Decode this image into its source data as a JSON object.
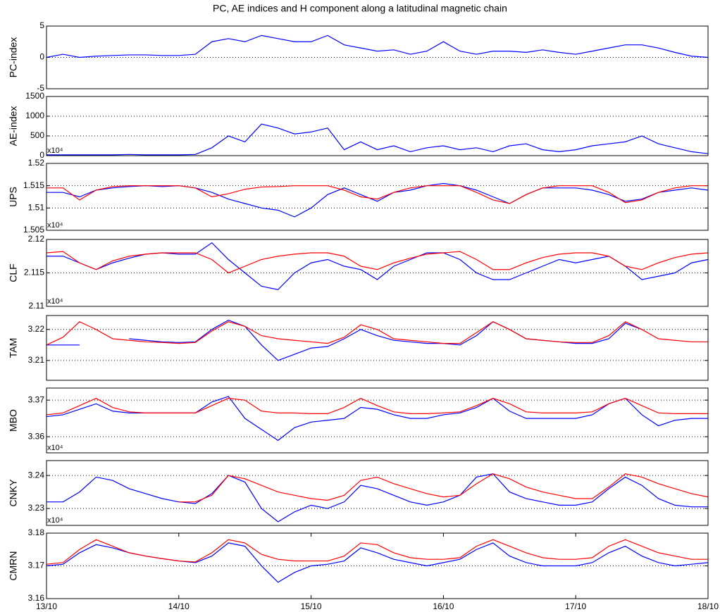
{
  "chart_data": [
    {
      "type": "line",
      "title": "PC, AE indices and H component along a latitudinal magnetic chain",
      "ylabel": "PC-index",
      "grid": true,
      "x": [
        13,
        13.125,
        13.25,
        13.375,
        13.5,
        13.625,
        13.75,
        13.875,
        14,
        14.125,
        14.25,
        14.375,
        14.5,
        14.625,
        14.75,
        14.875,
        15,
        15.125,
        15.25,
        15.375,
        15.5,
        15.625,
        15.75,
        15.875,
        16,
        16.125,
        16.25,
        16.375,
        16.5,
        16.625,
        16.75,
        16.875,
        17,
        17.125,
        17.25,
        17.375,
        17.5,
        17.625,
        17.75,
        17.875,
        18
      ],
      "xlim": [
        13,
        18
      ],
      "ylim": [
        -5,
        5
      ],
      "yticks": [
        -5,
        0,
        5
      ],
      "series": [
        {
          "color": "#0000ff",
          "values": [
            0,
            0.5,
            0,
            0.2,
            0.3,
            0.4,
            0.4,
            0.3,
            0.3,
            0.5,
            2.5,
            3,
            2.5,
            3.5,
            3,
            2.5,
            2.5,
            3.5,
            2,
            1.5,
            1,
            1.2,
            0.5,
            1,
            2.5,
            1,
            0.5,
            1,
            1,
            0.8,
            1.2,
            0.8,
            0.5,
            1,
            1.5,
            2,
            2,
            1.5,
            0.8,
            0.2,
            0
          ]
        }
      ]
    },
    {
      "type": "line",
      "ylabel": "AE-index",
      "grid": true,
      "y_multiplier": "x10⁴",
      "x": [
        13,
        13.125,
        13.25,
        13.375,
        13.5,
        13.625,
        13.75,
        13.875,
        14,
        14.125,
        14.25,
        14.375,
        14.5,
        14.625,
        14.75,
        14.875,
        15,
        15.125,
        15.25,
        15.375,
        15.5,
        15.625,
        15.75,
        15.875,
        16,
        16.125,
        16.25,
        16.375,
        16.5,
        16.625,
        16.75,
        16.875,
        17,
        17.125,
        17.25,
        17.375,
        17.5,
        17.625,
        17.75,
        17.875,
        18
      ],
      "xlim": [
        13,
        18
      ],
      "ylim": [
        0,
        1500
      ],
      "yticks": [
        0,
        500,
        1000,
        1500
      ],
      "series": [
        {
          "color": "#0000ff",
          "values": [
            20,
            20,
            20,
            20,
            20,
            30,
            20,
            20,
            20,
            30,
            200,
            500,
            350,
            800,
            700,
            550,
            600,
            700,
            150,
            350,
            150,
            250,
            100,
            200,
            250,
            150,
            200,
            100,
            250,
            300,
            150,
            100,
            150,
            250,
            300,
            350,
            500,
            300,
            200,
            100,
            50
          ]
        }
      ]
    },
    {
      "type": "line",
      "ylabel": "UPS",
      "grid": true,
      "y_multiplier": "x10⁴",
      "x": [
        13,
        13.125,
        13.25,
        13.375,
        13.5,
        13.625,
        13.75,
        13.875,
        14,
        14.125,
        14.25,
        14.375,
        14.5,
        14.625,
        14.75,
        14.875,
        15,
        15.125,
        15.25,
        15.375,
        15.5,
        15.625,
        15.75,
        15.875,
        16,
        16.125,
        16.25,
        16.375,
        16.5,
        16.625,
        16.75,
        16.875,
        17,
        17.125,
        17.25,
        17.375,
        17.5,
        17.625,
        17.75,
        17.875,
        18
      ],
      "xlim": [
        13,
        18
      ],
      "ylim": [
        1.505,
        1.52
      ],
      "yticks": [
        1.505,
        1.51,
        1.515,
        1.52
      ],
      "series": [
        {
          "color": "#0000ff",
          "values": [
            1.5135,
            1.5135,
            1.5125,
            1.514,
            1.5145,
            1.5148,
            1.515,
            1.5148,
            1.515,
            1.5145,
            1.5135,
            1.512,
            1.511,
            1.51,
            1.5095,
            1.508,
            1.51,
            1.513,
            1.5145,
            1.513,
            1.5115,
            1.5135,
            1.514,
            1.515,
            1.5155,
            1.515,
            1.514,
            1.5125,
            1.511,
            1.513,
            1.5145,
            1.5145,
            1.5145,
            1.514,
            1.513,
            1.5115,
            1.512,
            1.5135,
            1.514,
            1.5145,
            1.514
          ]
        },
        {
          "color": "#ff0000",
          "values": [
            1.5145,
            1.5145,
            1.5118,
            1.514,
            1.5148,
            1.515,
            1.515,
            1.515,
            1.515,
            1.5145,
            1.5125,
            1.5132,
            1.5142,
            1.5147,
            1.5148,
            1.515,
            1.515,
            1.515,
            1.514,
            1.5125,
            1.512,
            1.5135,
            1.5145,
            1.515,
            1.515,
            1.515,
            1.5135,
            1.5118,
            1.511,
            1.513,
            1.5145,
            1.515,
            1.515,
            1.515,
            1.5135,
            1.5112,
            1.5118,
            1.5135,
            1.5145,
            1.515,
            1.515
          ]
        }
      ]
    },
    {
      "type": "line",
      "ylabel": "CLF",
      "grid": true,
      "y_multiplier": "x10⁴",
      "x": [
        13,
        13.125,
        13.25,
        13.375,
        13.5,
        13.625,
        13.75,
        13.875,
        14,
        14.125,
        14.25,
        14.375,
        14.5,
        14.625,
        14.75,
        14.875,
        15,
        15.125,
        15.25,
        15.375,
        15.5,
        15.625,
        15.75,
        15.875,
        16,
        16.125,
        16.25,
        16.375,
        16.5,
        16.625,
        16.75,
        16.875,
        17,
        17.125,
        17.25,
        17.375,
        17.5,
        17.625,
        17.75,
        17.875,
        18
      ],
      "xlim": [
        13,
        18
      ],
      "ylim": [
        2.11,
        2.12
      ],
      "yticks": [
        2.11,
        2.115,
        2.12
      ],
      "series": [
        {
          "color": "#0000ff",
          "values": [
            2.1175,
            2.1175,
            2.1165,
            2.1155,
            2.1165,
            2.1172,
            2.1178,
            2.118,
            2.1178,
            2.1178,
            2.1195,
            2.117,
            2.115,
            2.113,
            2.1125,
            2.115,
            2.1165,
            2.117,
            2.116,
            2.1155,
            2.114,
            2.116,
            2.117,
            2.118,
            2.118,
            2.117,
            2.115,
            2.114,
            2.114,
            2.115,
            2.116,
            2.117,
            2.1165,
            2.117,
            2.1175,
            2.116,
            2.114,
            2.1145,
            2.115,
            2.1165,
            2.117
          ]
        },
        {
          "color": "#ff0000",
          "values": [
            2.118,
            2.1182,
            2.1165,
            2.1155,
            2.1168,
            2.1175,
            2.1178,
            2.118,
            2.118,
            2.118,
            2.117,
            2.115,
            2.116,
            2.117,
            2.1175,
            2.1178,
            2.118,
            2.118,
            2.1175,
            2.116,
            2.1155,
            2.1165,
            2.1172,
            2.1178,
            2.118,
            2.1182,
            2.117,
            2.1155,
            2.1155,
            2.1165,
            2.1173,
            2.1178,
            2.118,
            2.118,
            2.1175,
            2.116,
            2.1155,
            2.1165,
            2.1173,
            2.1178,
            2.118
          ]
        }
      ]
    },
    {
      "type": "line",
      "ylabel": "TAM",
      "grid": true,
      "x": [
        13,
        13.125,
        13.25,
        13.375,
        13.5,
        13.625,
        13.75,
        13.875,
        14,
        14.125,
        14.25,
        14.375,
        14.5,
        14.625,
        14.75,
        14.875,
        15,
        15.125,
        15.25,
        15.375,
        15.5,
        15.625,
        15.75,
        15.875,
        16,
        16.125,
        16.25,
        16.375,
        16.5,
        16.625,
        16.75,
        16.875,
        17,
        17.125,
        17.25,
        17.375,
        17.5,
        17.625,
        17.75,
        17.875,
        18
      ],
      "xlim": [
        13,
        18
      ],
      "ylim": [
        3.2036,
        3.2245
      ],
      "yticks": [
        3.21,
        3.22
      ],
      "series": [
        {
          "color": "#0000ff",
          "values": [
            3.215,
            3.215,
            3.215,
            null,
            null,
            3.217,
            3.2165,
            3.216,
            3.2158,
            3.216,
            3.22,
            3.223,
            3.221,
            3.215,
            3.21,
            3.212,
            3.214,
            3.2145,
            3.217,
            3.22,
            3.218,
            3.2165,
            3.216,
            3.2155,
            3.2155,
            3.215,
            3.218,
            3.2225,
            3.22,
            3.217,
            3.2165,
            3.216,
            3.2155,
            3.2155,
            3.217,
            3.222,
            3.22,
            null,
            null,
            null,
            null
          ]
        },
        {
          "color": "#ff0000",
          "values": [
            3.215,
            3.2175,
            3.2225,
            3.22,
            3.217,
            3.2165,
            3.216,
            3.2158,
            3.2155,
            3.2158,
            3.2195,
            3.2225,
            3.221,
            3.218,
            3.217,
            3.2165,
            3.216,
            3.2155,
            3.2175,
            3.2215,
            3.22,
            3.217,
            3.2165,
            3.216,
            3.2155,
            3.2155,
            3.219,
            3.2225,
            3.22,
            3.217,
            3.2165,
            3.216,
            3.2158,
            3.2158,
            3.218,
            3.2225,
            3.22,
            3.217,
            3.2165,
            3.216,
            3.216
          ]
        }
      ]
    },
    {
      "type": "line",
      "ylabel": "MBO",
      "grid": true,
      "y_multiplier": "x10⁴",
      "x": [
        13,
        13.125,
        13.25,
        13.375,
        13.5,
        13.625,
        13.75,
        13.875,
        14,
        14.125,
        14.25,
        14.375,
        14.5,
        14.625,
        14.75,
        14.875,
        15,
        15.125,
        15.25,
        15.375,
        15.5,
        15.625,
        15.75,
        15.875,
        16,
        16.125,
        16.25,
        16.375,
        16.5,
        16.625,
        16.75,
        16.875,
        17,
        17.125,
        17.25,
        17.375,
        17.5,
        17.625,
        17.75,
        17.875,
        18
      ],
      "xlim": [
        13,
        18
      ],
      "ylim": [
        3.3556,
        3.3733
      ],
      "yticks": [
        3.36,
        3.37
      ],
      "series": [
        {
          "color": "#0000ff",
          "values": [
            3.3655,
            3.366,
            3.3675,
            3.369,
            3.367,
            3.3665,
            3.3665,
            3.3665,
            3.3665,
            3.3665,
            3.3695,
            3.371,
            3.365,
            3.362,
            3.359,
            3.3625,
            3.364,
            3.3645,
            3.365,
            3.368,
            3.3675,
            3.366,
            3.365,
            3.365,
            3.366,
            3.3665,
            3.368,
            3.3705,
            3.367,
            3.365,
            3.365,
            3.365,
            3.365,
            3.366,
            3.369,
            3.3705,
            3.366,
            3.363,
            3.3645,
            3.365,
            3.365
          ]
        },
        {
          "color": "#ff0000",
          "values": [
            3.366,
            3.3665,
            3.3685,
            3.3705,
            3.368,
            3.3668,
            3.3665,
            3.3665,
            3.3665,
            3.3665,
            3.3685,
            3.3705,
            3.37,
            3.367,
            3.3665,
            3.3665,
            3.3663,
            3.3663,
            3.368,
            3.3705,
            3.3685,
            3.3668,
            3.3663,
            3.3663,
            3.3665,
            3.3668,
            3.3685,
            3.3705,
            3.369,
            3.3668,
            3.3665,
            3.3665,
            3.3665,
            3.3668,
            3.369,
            3.3705,
            3.3685,
            3.3665,
            3.3663,
            3.3663,
            3.3663
          ]
        }
      ]
    },
    {
      "type": "line",
      "ylabel": "CNKY",
      "grid": true,
      "y_multiplier": "x10⁴",
      "x": [
        13,
        13.125,
        13.25,
        13.375,
        13.5,
        13.625,
        13.75,
        13.875,
        14,
        14.125,
        14.25,
        14.375,
        14.5,
        14.625,
        14.75,
        14.875,
        15,
        15.125,
        15.25,
        15.375,
        15.5,
        15.625,
        15.75,
        15.875,
        16,
        16.125,
        16.25,
        16.375,
        16.5,
        16.625,
        16.75,
        16.875,
        17,
        17.125,
        17.25,
        17.375,
        17.5,
        17.625,
        17.75,
        17.875,
        18
      ],
      "xlim": [
        13,
        18
      ],
      "ylim": [
        3.2249,
        3.2445
      ],
      "yticks": [
        3.23,
        3.24
      ],
      "series": [
        {
          "color": "#0000ff",
          "values": [
            3.232,
            3.232,
            3.235,
            3.2395,
            3.2385,
            3.236,
            3.2345,
            3.233,
            3.232,
            3.2315,
            3.2345,
            3.24,
            3.238,
            3.23,
            3.226,
            3.229,
            3.231,
            3.23,
            3.232,
            3.237,
            3.236,
            3.234,
            3.232,
            3.231,
            3.232,
            3.234,
            3.2395,
            3.2405,
            3.235,
            3.233,
            3.232,
            3.231,
            3.231,
            3.232,
            3.236,
            3.2395,
            3.237,
            3.233,
            3.231,
            3.2305,
            3.2305
          ]
        },
        {
          "color": "#ff0000",
          "values": [
            null,
            null,
            null,
            null,
            null,
            null,
            null,
            null,
            3.232,
            3.232,
            3.234,
            3.24,
            3.239,
            3.237,
            3.235,
            3.234,
            3.233,
            3.2325,
            3.234,
            3.2385,
            3.2395,
            3.2375,
            3.236,
            3.2345,
            3.2335,
            3.234,
            3.2375,
            3.2405,
            3.239,
            3.2365,
            3.235,
            3.234,
            3.233,
            3.233,
            3.2365,
            3.2405,
            3.2395,
            3.2375,
            3.236,
            3.2345,
            3.2335
          ]
        }
      ]
    },
    {
      "type": "line",
      "ylabel": "CMRN",
      "grid": true,
      "x": [
        13,
        13.125,
        13.25,
        13.375,
        13.5,
        13.625,
        13.75,
        13.875,
        14,
        14.125,
        14.25,
        14.375,
        14.5,
        14.625,
        14.75,
        14.875,
        15,
        15.125,
        15.25,
        15.375,
        15.5,
        15.625,
        15.75,
        15.875,
        16,
        16.125,
        16.25,
        16.375,
        16.5,
        16.625,
        16.75,
        16.875,
        17,
        17.125,
        17.25,
        17.375,
        17.5,
        17.625,
        17.75,
        17.875,
        18
      ],
      "xlim": [
        13,
        18
      ],
      "ylim": [
        3.16,
        3.18
      ],
      "yticks": [
        3.16,
        3.17,
        3.18
      ],
      "xticks": [
        {
          "value": 13,
          "label": "13/10"
        },
        {
          "value": 14,
          "label": "14/10"
        },
        {
          "value": 15,
          "label": "15/10"
        },
        {
          "value": 16,
          "label": "16/10"
        },
        {
          "value": 17,
          "label": "17/10"
        },
        {
          "value": 18,
          "label": "18/10"
        }
      ],
      "series": [
        {
          "color": "#0000ff",
          "values": [
            3.17,
            3.1705,
            3.174,
            3.1765,
            3.1755,
            3.174,
            3.173,
            3.1722,
            3.1715,
            3.171,
            3.173,
            3.177,
            3.176,
            3.17,
            3.165,
            3.168,
            3.17,
            3.1705,
            3.1715,
            3.1755,
            3.174,
            3.172,
            3.171,
            3.17,
            3.171,
            3.172,
            3.175,
            3.177,
            3.173,
            3.171,
            3.17,
            3.17,
            3.17,
            3.171,
            3.174,
            3.176,
            3.173,
            3.171,
            3.17,
            3.1705,
            3.171
          ]
        },
        {
          "color": "#ff0000",
          "values": [
            3.1705,
            3.171,
            3.175,
            3.178,
            3.176,
            3.174,
            3.173,
            3.1722,
            3.1715,
            3.1712,
            3.174,
            3.178,
            3.177,
            3.1735,
            3.172,
            3.1715,
            3.1715,
            3.1715,
            3.173,
            3.177,
            3.1765,
            3.174,
            3.1725,
            3.172,
            3.172,
            3.1725,
            3.176,
            3.178,
            3.176,
            3.174,
            3.1725,
            3.172,
            3.172,
            3.1725,
            3.176,
            3.178,
            3.176,
            3.174,
            3.173,
            3.172,
            3.172
          ]
        }
      ]
    }
  ]
}
